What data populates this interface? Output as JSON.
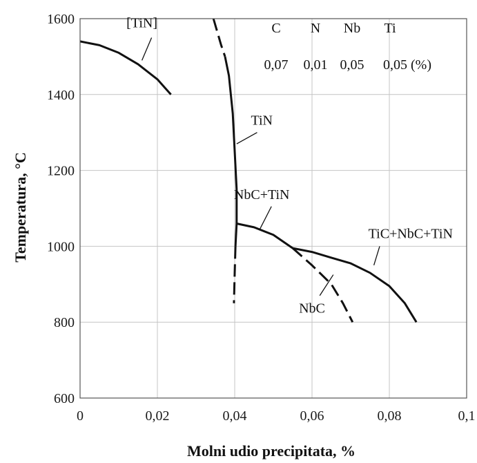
{
  "chart_data": {
    "type": "line",
    "title": "",
    "xlabel": "Molni udio precipitata, %",
    "ylabel": "Temperatura, °C",
    "xlim": [
      0,
      0.1
    ],
    "ylim": [
      600,
      1600
    ],
    "x_ticks": [
      0,
      0.02,
      0.04,
      0.06,
      0.08,
      0.1
    ],
    "x_tick_labels": [
      "0",
      "0,02",
      "0,04",
      "0,06",
      "0,08",
      "0,1"
    ],
    "y_ticks": [
      600,
      800,
      1000,
      1200,
      1400,
      1600
    ],
    "y_tick_labels": [
      "600",
      "800",
      "1000",
      "1200",
      "1400",
      "1600"
    ],
    "grid": true,
    "composition": {
      "headers": [
        "C",
        "N",
        "Nb",
        "Ti"
      ],
      "values": [
        "0,07",
        "0,01",
        "0,05",
        "0,05 (%)"
      ]
    },
    "series": [
      {
        "id": "tin-liquid",
        "style": "solid",
        "points": [
          [
            0,
            1540
          ],
          [
            0.005,
            1530
          ],
          [
            0.01,
            1510
          ],
          [
            0.015,
            1480
          ],
          [
            0.02,
            1440
          ],
          [
            0.0235,
            1400
          ]
        ]
      },
      {
        "id": "tin-solid",
        "style": "solid",
        "points": [
          [
            0.0375,
            1500
          ],
          [
            0.0385,
            1450
          ],
          [
            0.0395,
            1350
          ],
          [
            0.04,
            1250
          ],
          [
            0.0405,
            1150
          ],
          [
            0.0405,
            1060
          ],
          [
            0.0402,
            1000
          ]
        ]
      },
      {
        "id": "tin-solid-dashed-upper",
        "style": "dashed",
        "points": [
          [
            0.0345,
            1600
          ],
          [
            0.0365,
            1530
          ],
          [
            0.0375,
            1500
          ]
        ]
      },
      {
        "id": "tin-dashed-lower",
        "style": "dashed",
        "points": [
          [
            0.0402,
            1000
          ],
          [
            0.04,
            930
          ],
          [
            0.0398,
            850
          ]
        ]
      },
      {
        "id": "nbc-tin",
        "style": "solid",
        "points": [
          [
            0.0405,
            1060
          ],
          [
            0.045,
            1050
          ],
          [
            0.05,
            1030
          ],
          [
            0.055,
            995
          ]
        ]
      },
      {
        "id": "nbc-dashed",
        "style": "dashed",
        "points": [
          [
            0.055,
            995
          ],
          [
            0.06,
            950
          ],
          [
            0.065,
            900
          ],
          [
            0.068,
            850
          ],
          [
            0.0705,
            800
          ]
        ]
      },
      {
        "id": "tic-nbc-tin",
        "style": "solid",
        "points": [
          [
            0.055,
            995
          ],
          [
            0.06,
            985
          ],
          [
            0.065,
            970
          ],
          [
            0.07,
            955
          ],
          [
            0.075,
            930
          ],
          [
            0.08,
            895
          ],
          [
            0.084,
            850
          ],
          [
            0.087,
            800
          ]
        ]
      }
    ],
    "annotations": [
      {
        "id": "tin-bracket",
        "text": "[TiN]",
        "at": [
          0.016,
          1577
        ],
        "leader": [
          [
            0.0185,
            1550
          ],
          [
            0.016,
            1490
          ]
        ]
      },
      {
        "id": "tin",
        "text": "TiN",
        "at": [
          0.047,
          1320
        ],
        "leader": [
          [
            0.0458,
            1300
          ],
          [
            0.0405,
            1270
          ]
        ]
      },
      {
        "id": "nbc-tin",
        "text": "NbC+TiN",
        "at": [
          0.047,
          1125
        ],
        "leader": [
          [
            0.0495,
            1105
          ],
          [
            0.0465,
            1045
          ]
        ]
      },
      {
        "id": "tic-nbc-tin",
        "text": "TiC+NbC+TiN",
        "at": [
          0.0855,
          1022
        ],
        "leader": [
          [
            0.0775,
            1000
          ],
          [
            0.076,
            950
          ]
        ]
      },
      {
        "id": "nbc",
        "text": "NbC",
        "at": [
          0.06,
          825
        ],
        "leader": [
          [
            0.062,
            870
          ],
          [
            0.0655,
            925
          ]
        ]
      }
    ]
  }
}
